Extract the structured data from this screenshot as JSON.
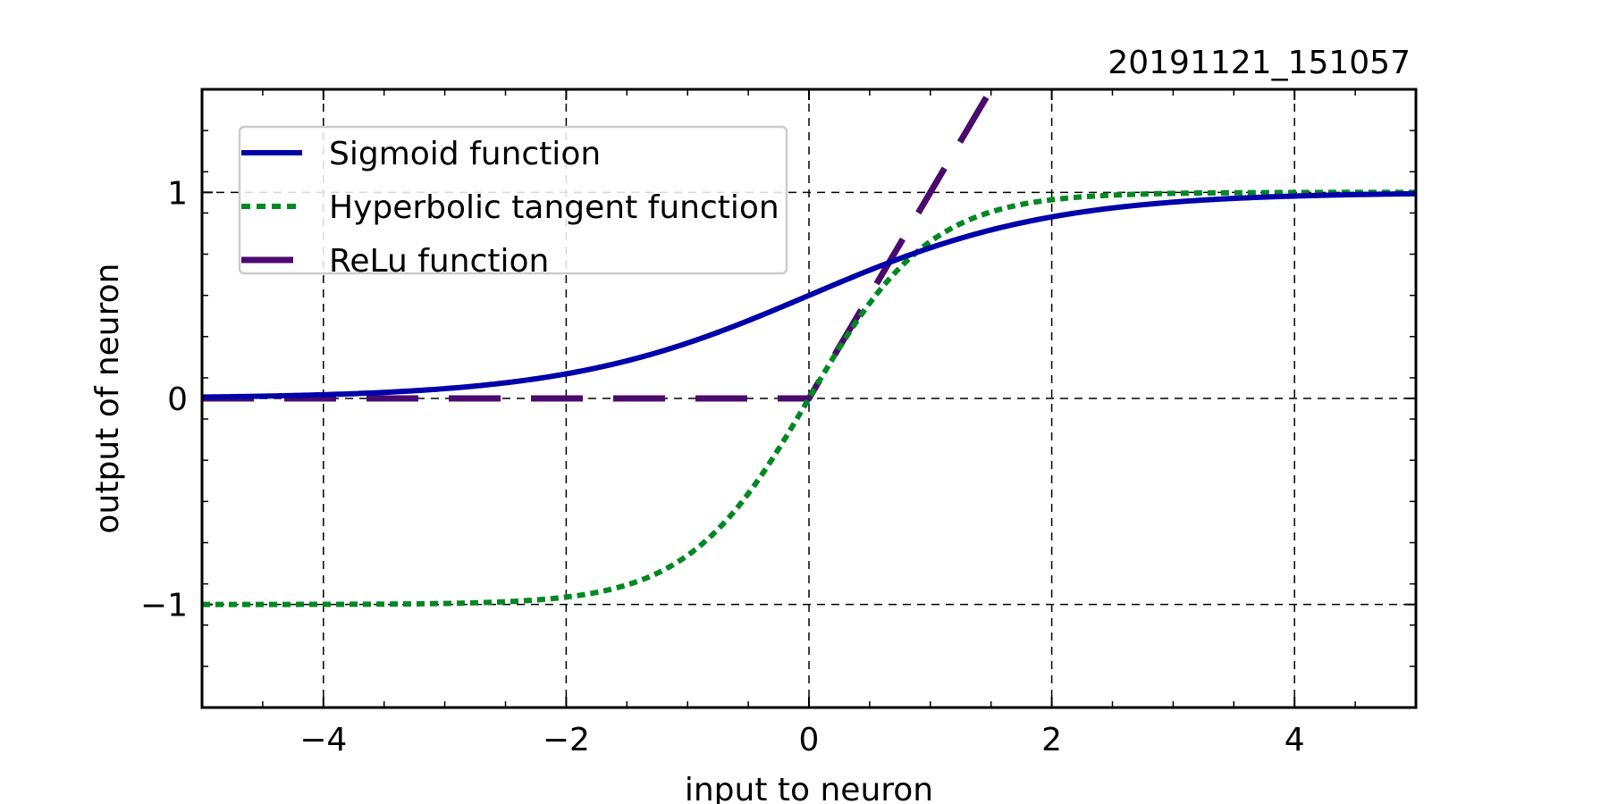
{
  "chart_data": {
    "type": "line",
    "timestamp": "20191121_151057",
    "xlabel": "input to neuron",
    "ylabel": "output of neuron",
    "xlim": [
      -5,
      5
    ],
    "ylim": [
      -1.5,
      1.5
    ],
    "xticks": [
      -4,
      -2,
      0,
      2,
      4
    ],
    "xtick_labels": [
      "−4",
      "−2",
      "0",
      "2",
      "4"
    ],
    "yticks": [
      -1,
      0,
      1
    ],
    "ytick_labels": [
      "−1",
      "0",
      "1"
    ],
    "x_minor_step": 0.5,
    "y_minor_step": 0.2,
    "grid": true,
    "legend_position": "top-left",
    "series": [
      {
        "name": "Sigmoid function",
        "function": "sigmoid",
        "color": "#0000aa",
        "style": "solid",
        "x": [
          -5,
          -4,
          -3,
          -2,
          -1,
          0,
          1,
          2,
          3,
          4,
          5
        ],
        "y": [
          0.007,
          0.018,
          0.047,
          0.119,
          0.269,
          0.5,
          0.731,
          0.881,
          0.953,
          0.982,
          0.993
        ]
      },
      {
        "name": "Hyperbolic tangent function",
        "function": "tanh",
        "color": "#008822",
        "style": "dotted",
        "x": [
          -5,
          -4,
          -3,
          -2,
          -1,
          0,
          1,
          2,
          3,
          4,
          5
        ],
        "y": [
          -1.0,
          -0.999,
          -0.995,
          -0.964,
          -0.762,
          0.0,
          0.762,
          0.964,
          0.995,
          0.999,
          1.0
        ]
      },
      {
        "name": "ReLu function",
        "function": "relu",
        "color": "#4b0a6e",
        "style": "dashed",
        "x": [
          -5,
          0,
          1.5
        ],
        "y": [
          0,
          0,
          1.5
        ]
      }
    ]
  }
}
